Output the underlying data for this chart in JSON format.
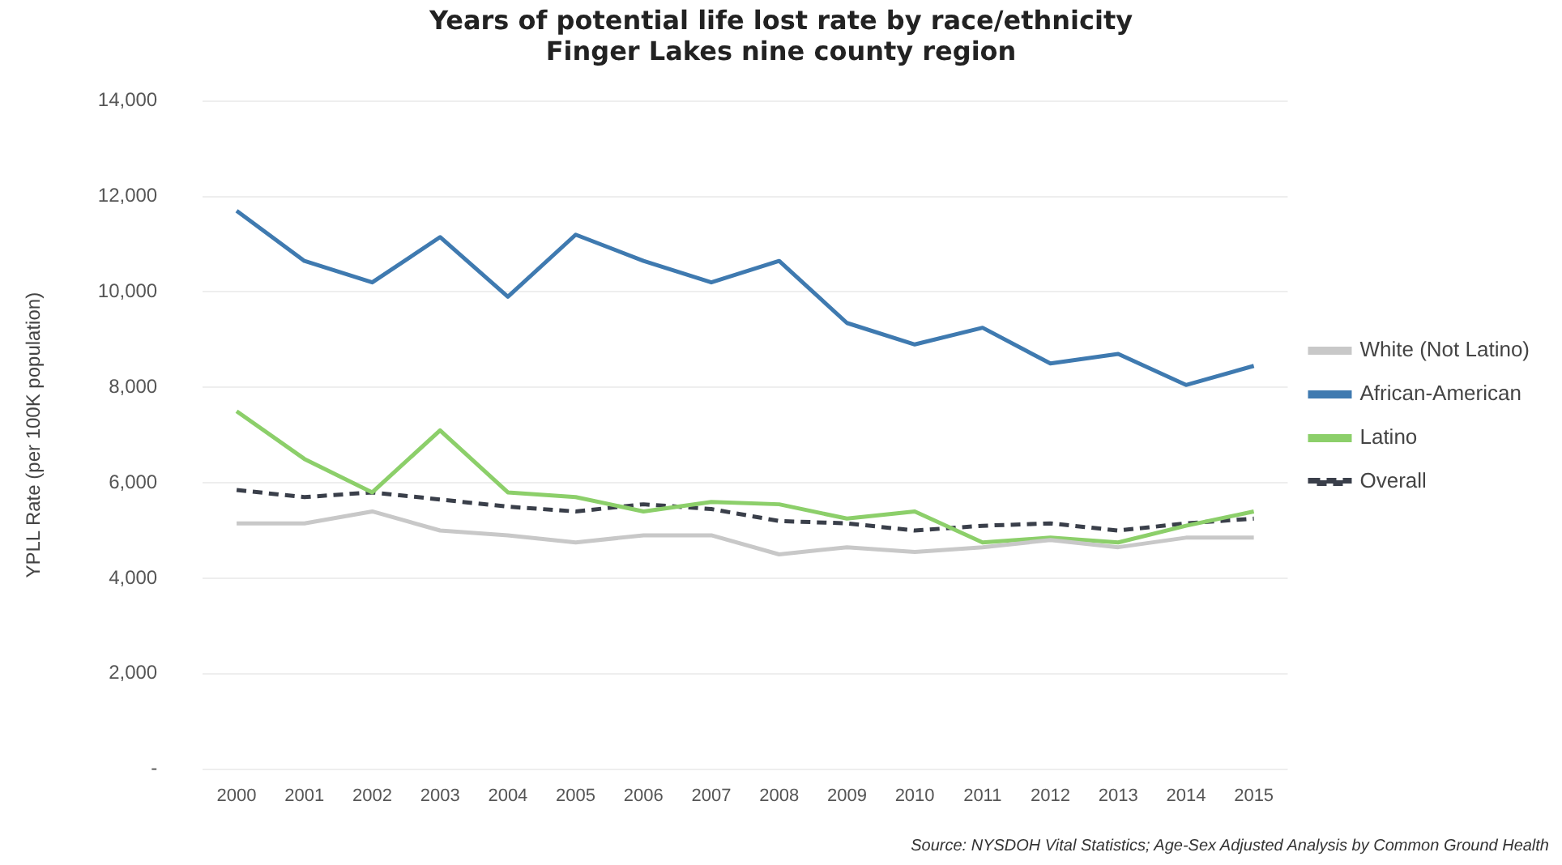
{
  "chart_data": {
    "type": "line",
    "title": "Years of potential life lost rate by race/ethnicity",
    "subtitle": "Finger Lakes nine county region",
    "ylabel": "YPLL Rate (per 100K population)",
    "categories": [
      "2000",
      "2001",
      "2002",
      "2003",
      "2004",
      "2005",
      "2006",
      "2007",
      "2008",
      "2009",
      "2010",
      "2011",
      "2012",
      "2013",
      "2014",
      "2015"
    ],
    "series": [
      {
        "name": "White (Not Latino)",
        "color": "#c8c8c8",
        "line_style": "solid",
        "values": [
          5150,
          5150,
          5400,
          5000,
          4900,
          4750,
          4900,
          4900,
          4500,
          4650,
          4550,
          4650,
          4800,
          4650,
          4850,
          4850
        ]
      },
      {
        "name": "African-American",
        "color": "#3f7ab0",
        "line_style": "solid",
        "values": [
          11700,
          10650,
          10200,
          11150,
          9900,
          11200,
          10650,
          10200,
          10650,
          9350,
          8900,
          9250,
          8500,
          8700,
          8050,
          8450
        ]
      },
      {
        "name": "Latino",
        "color": "#8ccf6a",
        "line_style": "solid",
        "values": [
          7500,
          6500,
          5800,
          7100,
          5800,
          5700,
          5400,
          5600,
          5550,
          5250,
          5400,
          4750,
          4850,
          4750,
          5100,
          5400
        ]
      },
      {
        "name": "Overall",
        "color": "#3a3f4a",
        "line_style": "dashed",
        "values": [
          5850,
          5700,
          5800,
          5650,
          5500,
          5400,
          5550,
          5450,
          5200,
          5150,
          5000,
          5100,
          5150,
          5000,
          5150,
          5250
        ]
      }
    ],
    "ylim": [
      0,
      14000
    ],
    "yticks": [
      {
        "value": 0,
        "label": "-"
      },
      {
        "value": 2000,
        "label": "2,000"
      },
      {
        "value": 4000,
        "label": "4,000"
      },
      {
        "value": 6000,
        "label": "6,000"
      },
      {
        "value": 8000,
        "label": "8,000"
      },
      {
        "value": 10000,
        "label": "10,000"
      },
      {
        "value": 12000,
        "label": "12,000"
      },
      {
        "value": 14000,
        "label": "14,000"
      }
    ],
    "grid": "y",
    "legend": "right",
    "marker": "none",
    "annotations": [
      "Source: NYSDOH Vital Statistics; Age-Sex Adjusted Analysis by Common Ground Health"
    ]
  }
}
